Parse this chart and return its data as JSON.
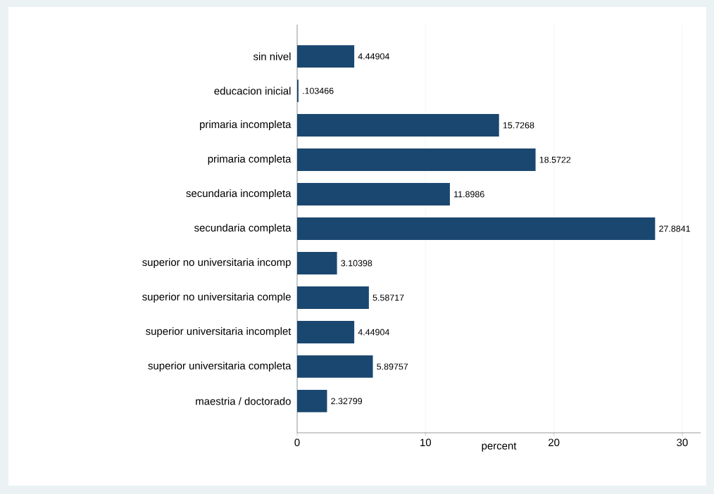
{
  "chart_data": {
    "type": "bar",
    "orientation": "horizontal",
    "xlabel": "percent",
    "categories": [
      "sin nivel",
      "educacion inicial",
      "primaria incompleta",
      "primaria completa",
      "secundaria incompleta",
      "secundaria completa",
      "superior no universitaria incomp",
      "superior no universitaria comple",
      "superior universitaria incomplet",
      "superior universitaria completa",
      "maestria / doctorado"
    ],
    "values": [
      4.44904,
      0.103466,
      15.7268,
      18.5722,
      11.8986,
      27.8841,
      3.10398,
      5.58717,
      4.44904,
      5.89757,
      2.32799
    ],
    "value_labels": [
      "4.44904",
      ".103466",
      "15.7268",
      "18.5722",
      "11.8986",
      "27.8841",
      "3.10398",
      "5.58717",
      "4.44904",
      "5.89757",
      "2.32799"
    ],
    "color": "#1a476f",
    "xlim": [
      0,
      31.43
    ],
    "xticks": [
      0,
      10,
      20,
      30
    ],
    "grid": "x"
  }
}
